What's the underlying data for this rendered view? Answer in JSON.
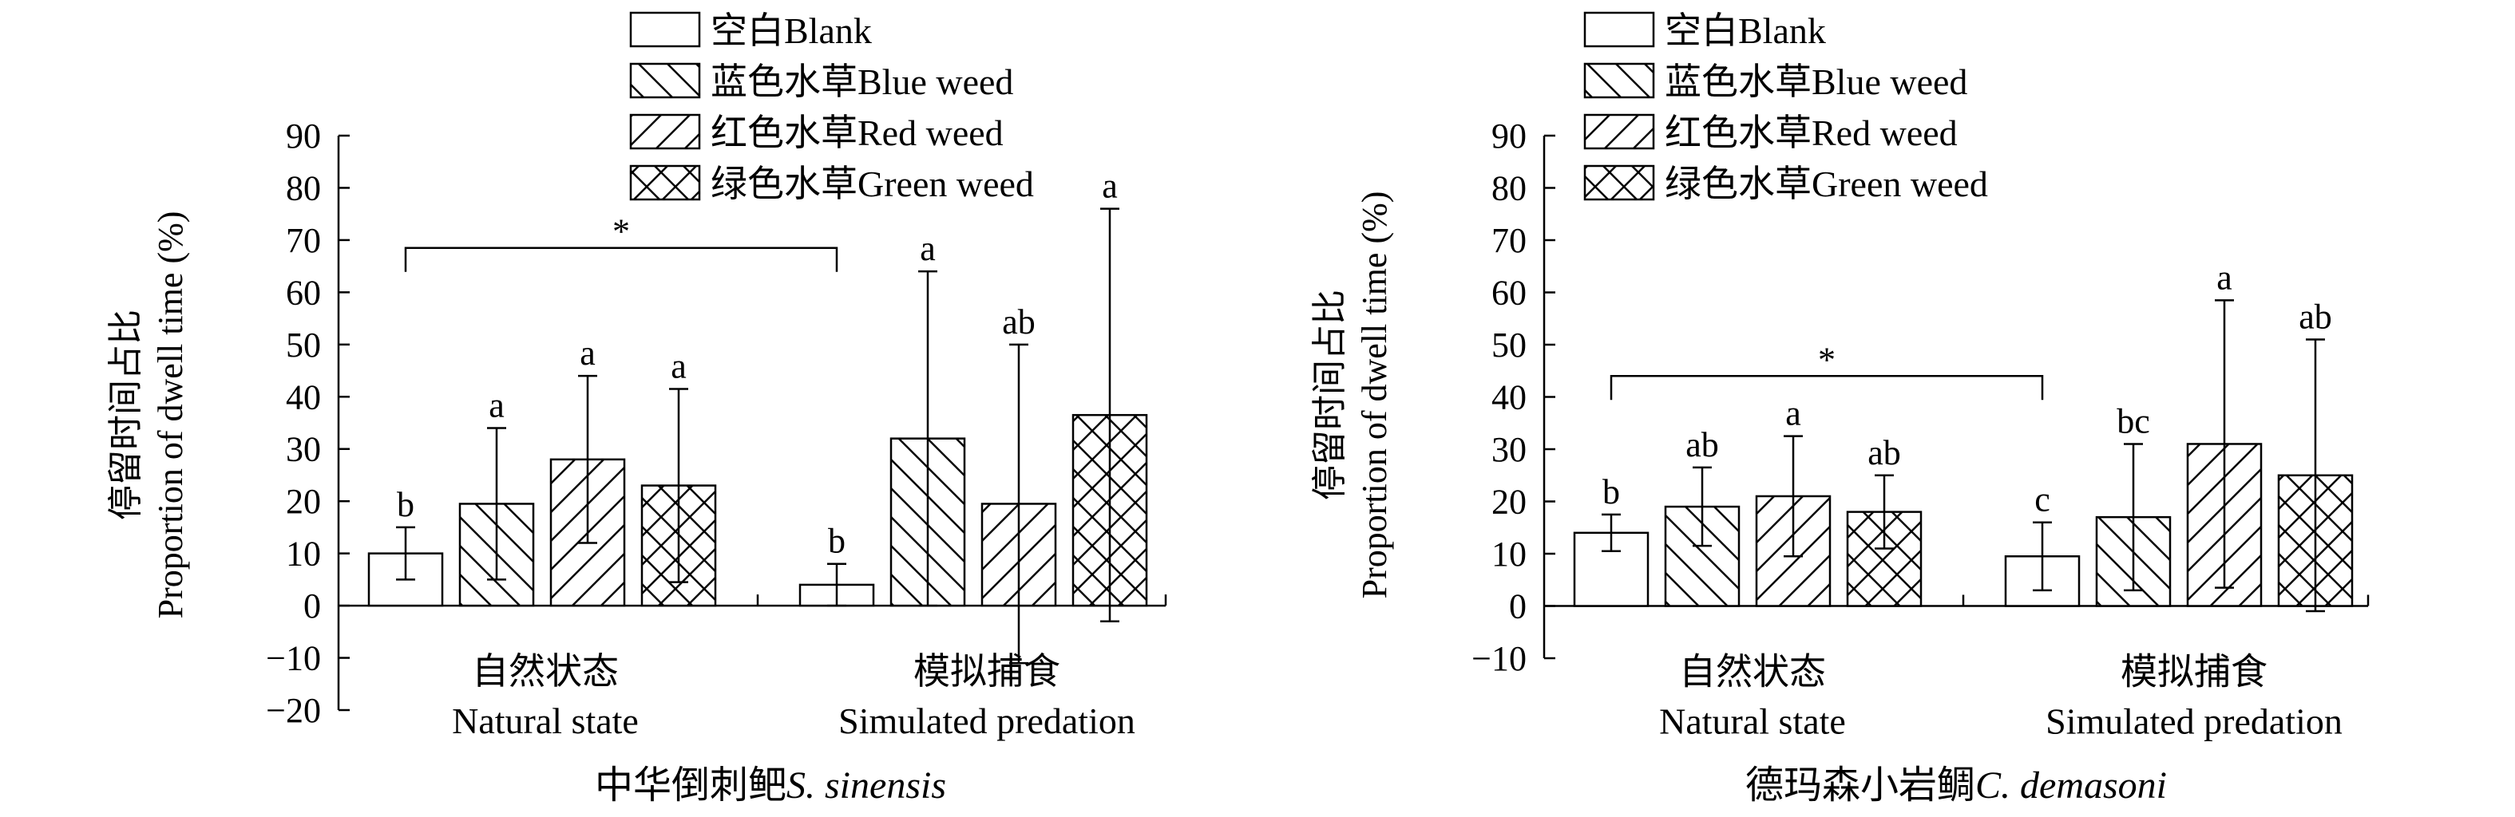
{
  "chart_data": [
    {
      "type": "bar",
      "title": "",
      "caption_cn": "中华倒刺鲃",
      "caption_species": "S. sinensis",
      "ylabel_cn": "停留时间占比",
      "ylabel": "Proportion of dwell time (%)",
      "ylim": [
        -20,
        90
      ],
      "yticks": [
        -20,
        -10,
        0,
        10,
        20,
        30,
        40,
        50,
        60,
        70,
        80,
        90
      ],
      "grid": false,
      "legend_position": "top",
      "groups": [
        {
          "label_cn": "自然状态",
          "label_en": "Natural state"
        },
        {
          "label_cn": "模拟捕食",
          "label_en": "Simulated predation"
        }
      ],
      "series": [
        {
          "name": "空白Blank",
          "pattern": "none",
          "values": [
            10,
            4
          ],
          "errors": [
            5,
            4
          ],
          "letters": [
            "b",
            "b"
          ]
        },
        {
          "name": "蓝色水草Blue weed",
          "pattern": "back-diagonal",
          "values": [
            19.5,
            32
          ],
          "errors": [
            14.5,
            32
          ],
          "letters": [
            "a",
            "a"
          ]
        },
        {
          "name": "红色水草Red weed",
          "pattern": "forward-diagonal",
          "values": [
            28,
            19.5
          ],
          "errors": [
            16,
            30.5
          ],
          "letters": [
            "a",
            "ab"
          ]
        },
        {
          "name": "绿色水草Green weed",
          "pattern": "cross-hatch",
          "values": [
            23,
            36.5
          ],
          "errors": [
            18.5,
            39.5
          ],
          "letters": [
            "a",
            "a"
          ]
        }
      ],
      "significance": {
        "symbol": "*",
        "bracket_y": 68.5
      }
    },
    {
      "type": "bar",
      "title": "",
      "caption_cn": "德玛森小岩鲷",
      "caption_species": "C. demasoni",
      "ylabel_cn": "停留时间占比",
      "ylabel": "Proportion of dwell time (%)",
      "ylim": [
        -10,
        90
      ],
      "yticks": [
        -10,
        0,
        10,
        20,
        30,
        40,
        50,
        60,
        70,
        80,
        90
      ],
      "grid": false,
      "legend_position": "top",
      "groups": [
        {
          "label_cn": "自然状态",
          "label_en": "Natural state"
        },
        {
          "label_cn": "模拟捕食",
          "label_en": "Simulated predation"
        }
      ],
      "series": [
        {
          "name": "空白Blank",
          "pattern": "none",
          "values": [
            14,
            9.5
          ],
          "errors": [
            3.5,
            6.5
          ],
          "letters": [
            "b",
            "c"
          ]
        },
        {
          "name": "蓝色水草Blue weed",
          "pattern": "back-diagonal",
          "values": [
            19,
            17
          ],
          "errors": [
            7.5,
            14
          ],
          "letters": [
            "ab",
            "bc"
          ]
        },
        {
          "name": "红色水草Red weed",
          "pattern": "forward-diagonal",
          "values": [
            21,
            31
          ],
          "errors": [
            11.5,
            27.5
          ],
          "letters": [
            "a",
            "a"
          ]
        },
        {
          "name": "绿色水草Green weed",
          "pattern": "cross-hatch",
          "values": [
            18,
            25
          ],
          "errors": [
            7,
            26
          ],
          "letters": [
            "ab",
            "ab"
          ]
        }
      ],
      "significance": {
        "symbol": "*",
        "bracket_y": 44
      }
    }
  ]
}
